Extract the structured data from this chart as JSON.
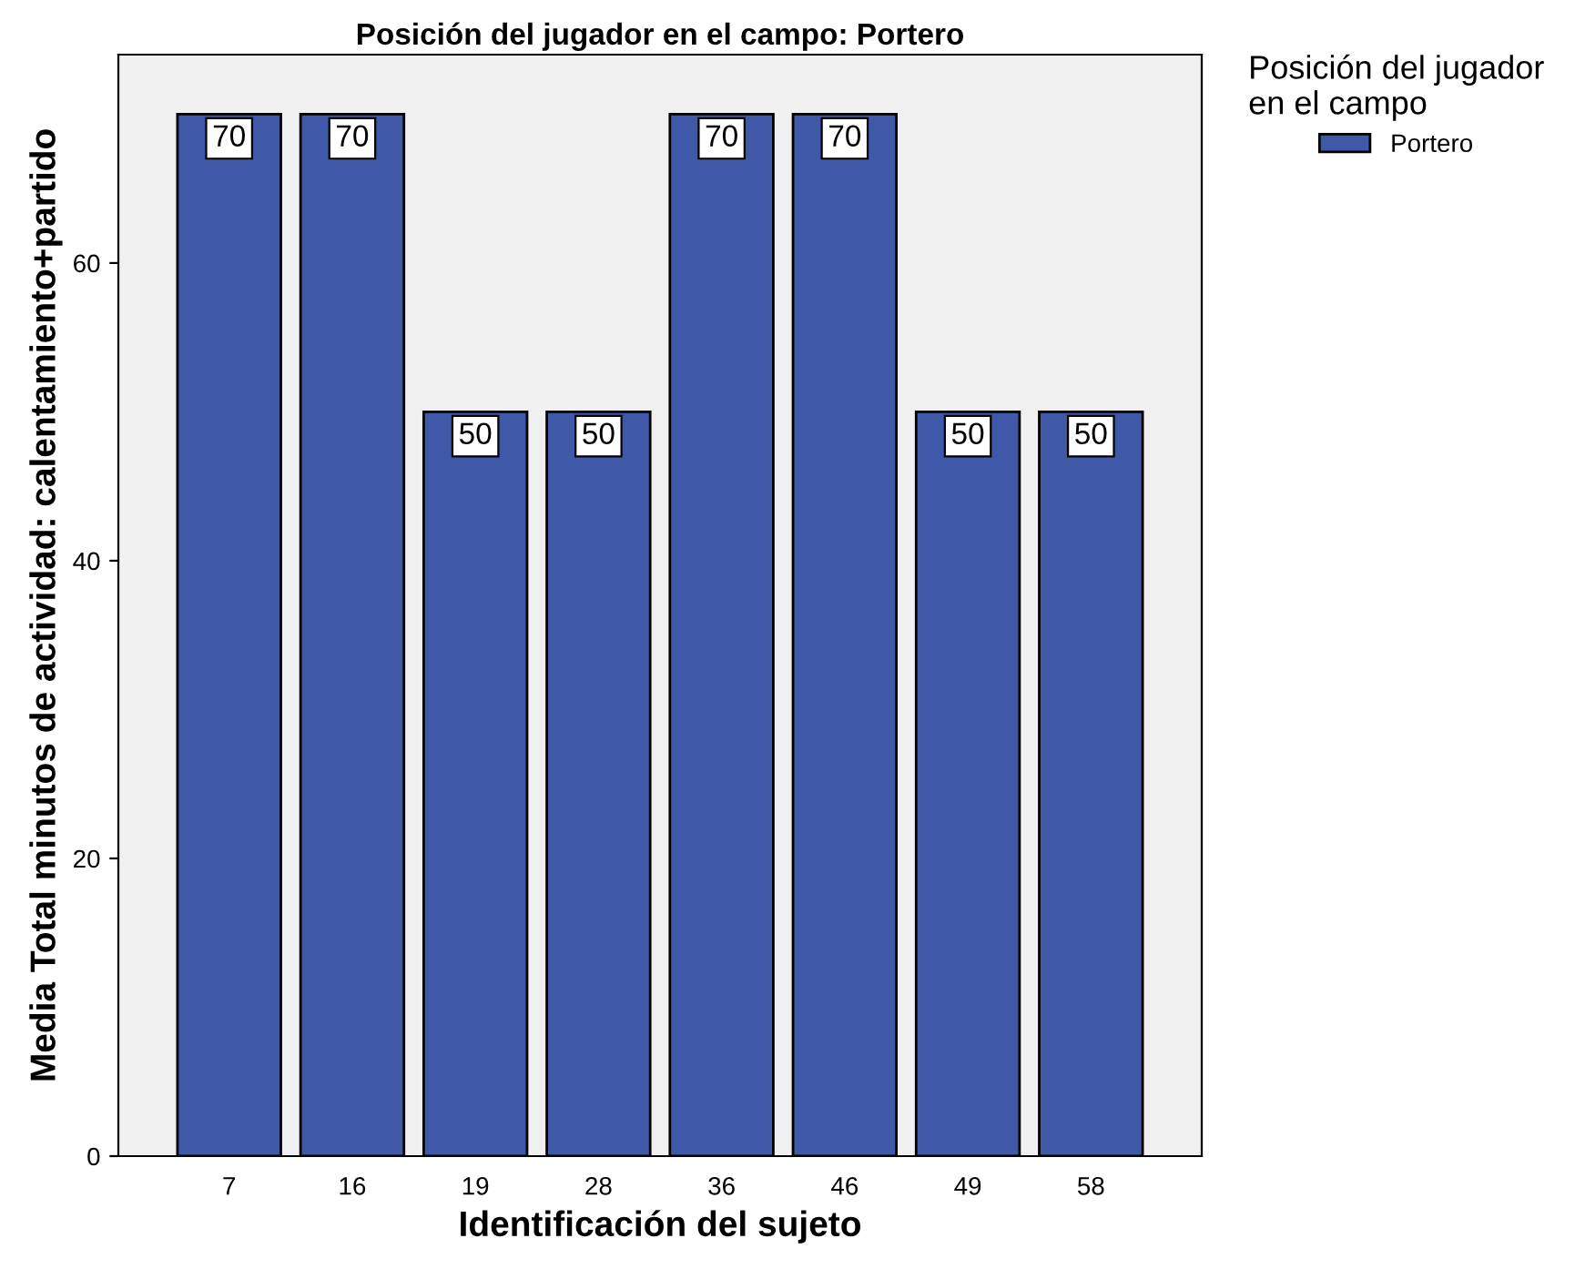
{
  "chart_data": {
    "type": "bar",
    "title": "Posición del jugador en el campo: Portero",
    "xlabel": "Identificación del sujeto",
    "ylabel": "Media Total minutos de actividad: calentamiento+partido",
    "legend_title": "Posición del jugador\nen el campo",
    "categories": [
      "7",
      "16",
      "19",
      "28",
      "36",
      "46",
      "49",
      "58"
    ],
    "series": [
      {
        "name": "Portero",
        "color": "#3f58a8",
        "values": [
          70,
          70,
          50,
          50,
          70,
          70,
          50,
          50
        ]
      }
    ],
    "ylim": [
      0,
      74
    ],
    "yticks": [
      0,
      20,
      40,
      60
    ],
    "grid": false,
    "legend": "top right",
    "data_labels": true
  }
}
